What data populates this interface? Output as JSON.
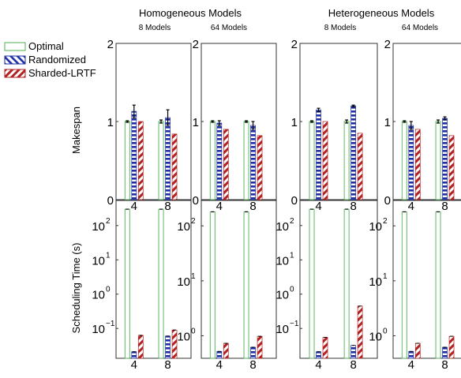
{
  "chart_data": {
    "type": "bar",
    "group_titles": [
      "Homogeneous Models",
      "Heterogeneous Models"
    ],
    "subtitles": [
      "8 Models",
      "64 Models",
      "8 Models",
      "64 Models"
    ],
    "legend": {
      "placement": "top-left",
      "entries": [
        "Optimal",
        "Randomized",
        "Sharded-LRTF"
      ]
    },
    "colors": {
      "optimal": "#4caf50",
      "randomized": "#1f2fa3",
      "sharded": "#b22222"
    },
    "categories": [
      "4",
      "8"
    ],
    "rows": [
      {
        "ylabel": "Makespan",
        "scale": "linear",
        "panels": [
          {
            "ylim": [
              0,
              2
            ],
            "yticks": [
              "0",
              "1",
              "2"
            ],
            "series": [
              {
                "name": "Optimal",
                "values": [
                  1.0,
                  1.0
                ],
                "err": [
                  0.01,
                  0.02
                ]
              },
              {
                "name": "Randomized",
                "values": [
                  1.13,
                  1.05
                ],
                "err": [
                  0.08,
                  0.1
                ]
              },
              {
                "name": "Sharded-LRTF",
                "values": [
                  1.0,
                  0.84
                ],
                "err": [
                  0,
                  0
                ]
              }
            ]
          },
          {
            "ylim": [
              0,
              2
            ],
            "yticks": [
              "0",
              "1",
              "2"
            ],
            "series": [
              {
                "name": "Optimal",
                "values": [
                  1.0,
                  1.0
                ],
                "err": [
                  0.01,
                  0.01
                ]
              },
              {
                "name": "Randomized",
                "values": [
                  0.98,
                  0.95
                ],
                "err": [
                  0.03,
                  0.05
                ]
              },
              {
                "name": "Sharded-LRTF",
                "values": [
                  0.9,
                  0.82
                ],
                "err": [
                  0,
                  0
                ]
              }
            ]
          },
          {
            "ylim": [
              0,
              2
            ],
            "yticks": [
              "0",
              "1",
              "2"
            ],
            "series": [
              {
                "name": "Optimal",
                "values": [
                  1.0,
                  1.0
                ],
                "err": [
                  0.01,
                  0.02
                ]
              },
              {
                "name": "Randomized",
                "values": [
                  1.15,
                  1.2
                ],
                "err": [
                  0.02,
                  0.01
                ]
              },
              {
                "name": "Sharded-LRTF",
                "values": [
                  1.0,
                  0.85
                ],
                "err": [
                  0,
                  0
                ]
              }
            ]
          },
          {
            "ylim": [
              0,
              2
            ],
            "yticks": [
              "0",
              "1",
              "2"
            ],
            "series": [
              {
                "name": "Optimal",
                "values": [
                  1.0,
                  1.0
                ],
                "err": [
                  0.01,
                  0.02
                ]
              },
              {
                "name": "Randomized",
                "values": [
                  0.95,
                  1.04
                ],
                "err": [
                  0.05,
                  0.02
                ]
              },
              {
                "name": "Sharded-LRTF",
                "values": [
                  0.9,
                  0.82
                ],
                "err": [
                  0,
                  0
                ]
              }
            ]
          }
        ]
      },
      {
        "ylabel": "Scheduling Time (s)",
        "scale": "log",
        "panels": [
          {
            "ylim": [
              0.0135,
              540
            ],
            "yticks": [
              {
                "value": 100,
                "exp": "2"
              },
              {
                "value": 10,
                "exp": "1"
              },
              {
                "value": 1,
                "exp": "0"
              },
              {
                "value": 0.1,
                "exp": "−1"
              }
            ],
            "series": [
              {
                "name": "Optimal",
                "values": [
                  300,
                  300
                ]
              },
              {
                "name": "Randomized",
                "values": [
                  0.021,
                  0.06
                ]
              },
              {
                "name": "Sharded-LRTF",
                "values": [
                  0.063,
                  0.09
                ]
              }
            ]
          },
          {
            "ylim": [
              0.39,
              290
            ],
            "yticks": [
              {
                "value": 100,
                "exp": "2"
              },
              {
                "value": 10,
                "exp": "1"
              },
              {
                "value": 1,
                "exp": "0"
              }
            ],
            "series": [
              {
                "name": "Optimal",
                "values": [
                  180,
                  180
                ]
              },
              {
                "name": "Randomized",
                "values": [
                  0.52,
                  0.62
                ]
              },
              {
                "name": "Sharded-LRTF",
                "values": [
                  0.73,
                  0.98
                ]
              }
            ]
          },
          {
            "ylim": [
              0.0135,
              540
            ],
            "yticks": [
              {
                "value": 100,
                "exp": "2"
              },
              {
                "value": 10,
                "exp": "1"
              },
              {
                "value": 1,
                "exp": "0"
              },
              {
                "value": 0.1,
                "exp": "−1"
              }
            ],
            "series": [
              {
                "name": "Optimal",
                "values": [
                  300,
                  300
                ]
              },
              {
                "name": "Randomized",
                "values": [
                  0.021,
                  0.032
                ]
              },
              {
                "name": "Sharded-LRTF",
                "values": [
                  0.055,
                  0.45
                ]
              }
            ]
          },
          {
            "ylim": [
              0.39,
              290
            ],
            "yticks": [
              {
                "value": 100,
                "exp": "2"
              },
              {
                "value": 10,
                "exp": "1"
              },
              {
                "value": 1,
                "exp": "0"
              }
            ],
            "series": [
              {
                "name": "Optimal",
                "values": [
                  180,
                  180
                ]
              },
              {
                "name": "Randomized",
                "values": [
                  0.52,
                  0.62
                ]
              },
              {
                "name": "Sharded-LRTF",
                "values": [
                  0.73,
                  0.98
                ]
              }
            ]
          }
        ]
      }
    ]
  }
}
